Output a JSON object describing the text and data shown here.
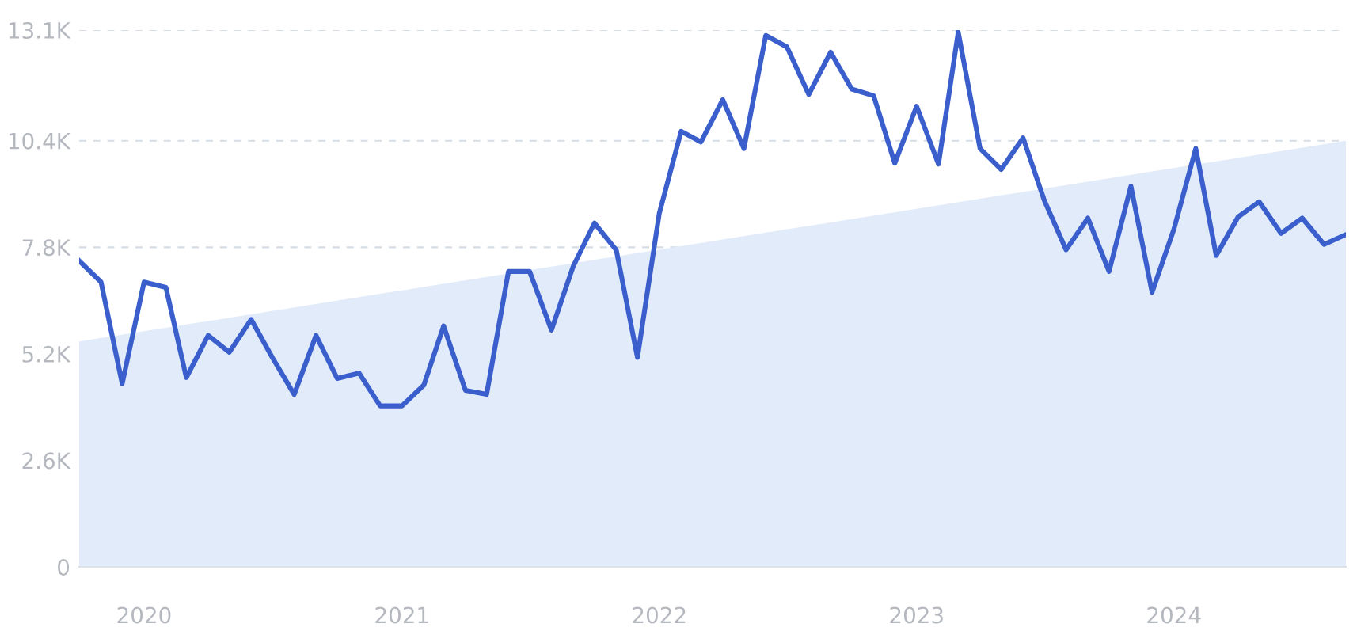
{
  "chart_data": {
    "type": "line",
    "x": [
      "2019-10",
      "2019-11",
      "2019-12",
      "2020-01",
      "2020-02",
      "2020-03",
      "2020-04",
      "2020-05",
      "2020-06",
      "2020-07",
      "2020-08",
      "2020-09",
      "2020-10",
      "2020-11",
      "2020-12",
      "2021-01",
      "2021-02",
      "2021-03",
      "2021-04",
      "2021-05",
      "2021-06",
      "2021-07",
      "2021-08",
      "2021-09",
      "2021-10",
      "2021-11",
      "2021-12",
      "2022-01",
      "2022-02",
      "2022-03",
      "2022-04",
      "2022-05",
      "2022-06",
      "2022-07",
      "2022-08",
      "2022-09",
      "2022-10",
      "2022-11",
      "2022-12",
      "2023-01",
      "2023-02",
      "2023-03",
      "2023-04",
      "2023-05",
      "2023-06",
      "2023-07",
      "2023-08",
      "2023-09",
      "2023-10",
      "2023-11",
      "2023-12",
      "2024-01",
      "2024-02",
      "2024-03",
      "2024-04",
      "2024-05",
      "2024-06",
      "2024-07",
      "2024-08",
      "2024-09"
    ],
    "series": [
      {
        "type": "area",
        "x": [
          "2019-10",
          "2024-09"
        ],
        "values": [
          5500,
          10400
        ],
        "color": "#e2ebfa"
      },
      {
        "color": "#3a5fcd",
        "values": [
          7470,
          6950,
          4470,
          6950,
          6820,
          4620,
          5650,
          5240,
          6040,
          5110,
          4210,
          5650,
          4600,
          4730,
          3930,
          3930,
          4440,
          5880,
          4310,
          4210,
          7210,
          7210,
          5780,
          7340,
          8390,
          7730,
          5110,
          8630,
          10630,
          10370,
          11400,
          10210,
          12970,
          12690,
          11530,
          12560,
          11660,
          11500,
          9850,
          11240,
          9830,
          13050,
          10210,
          9700,
          10470,
          8950,
          7740,
          8510,
          7210,
          9290,
          6700,
          8240,
          10210,
          7600,
          8540,
          8910,
          8140,
          8510,
          7870,
          8110
        ]
      }
    ],
    "xlim": [
      "2019-10",
      "2024-09"
    ],
    "xticks": [
      {
        "value": "2020-01",
        "label": "2020"
      },
      {
        "value": "2021-01",
        "label": "2021"
      },
      {
        "value": "2022-01",
        "label": "2022"
      },
      {
        "value": "2023-01",
        "label": "2023"
      },
      {
        "value": "2024-01",
        "label": "2024"
      }
    ],
    "ylim": [
      0,
      13100
    ],
    "yticks": [
      0,
      {
        "value": 2600,
        "label": "2.6K"
      },
      {
        "value": 5200,
        "label": "5.2K"
      },
      {
        "value": 7800,
        "label": "7.8K"
      },
      {
        "value": 10400,
        "label": "10.4K"
      },
      {
        "value": 13100,
        "label": "13.1K"
      }
    ],
    "grid": "y",
    "line_style": "solid",
    "marker": "none"
  }
}
